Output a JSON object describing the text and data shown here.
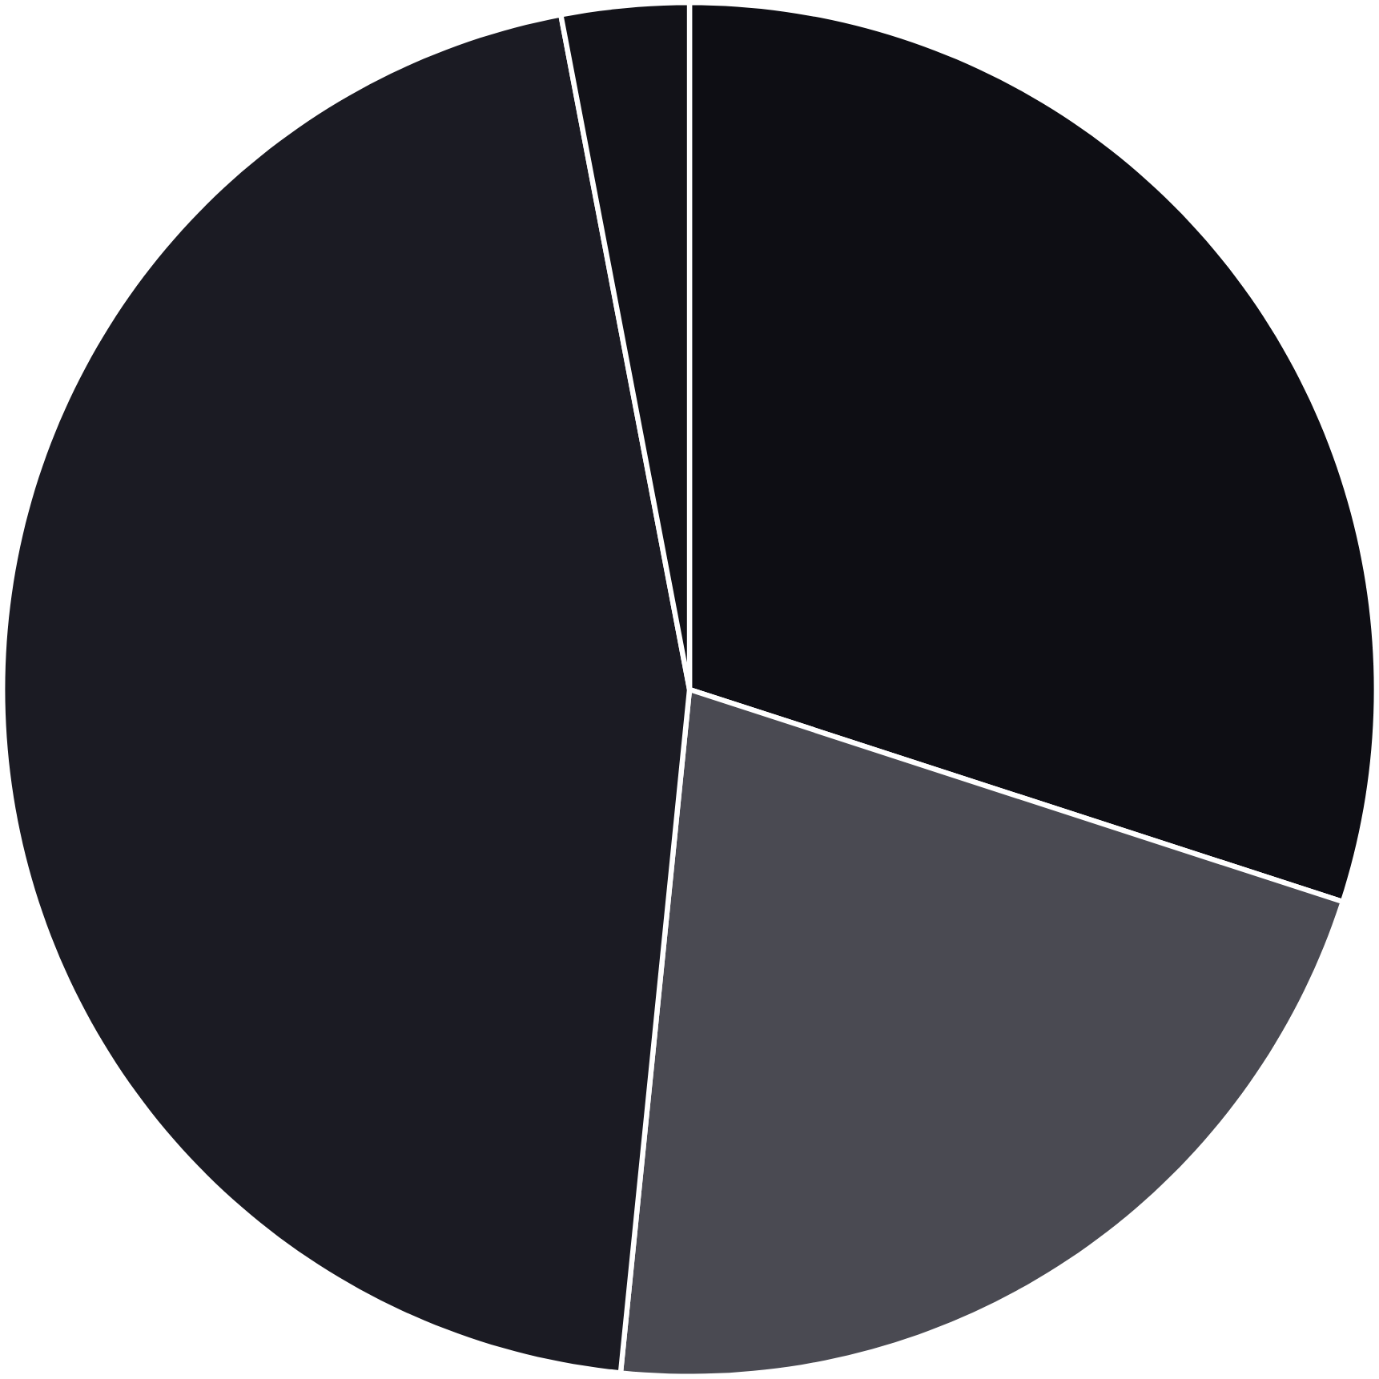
{
  "chart_data": {
    "type": "pie",
    "categories": [
      null,
      null,
      null,
      null
    ],
    "values": [
      30,
      21.6,
      45.4,
      3
    ],
    "colors": [
      "#0e0e14",
      "#4a4a52",
      "#1b1b23",
      "#121218"
    ]
  }
}
